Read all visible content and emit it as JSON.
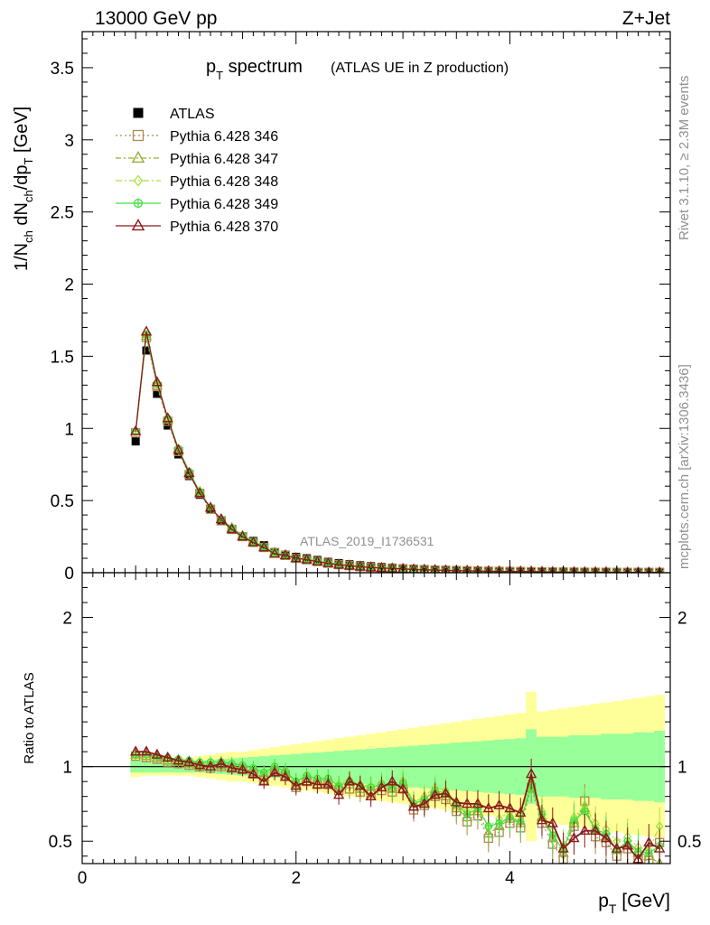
{
  "header": {
    "left": "13000 GeV pp",
    "right": "Z+Jet"
  },
  "side_labels": {
    "top": "Rivet 3.1.10, ≥ 2.3M events",
    "bottom": "mcplots.cern.ch [arXiv:1306.3436]"
  },
  "watermark": "ATLAS_2019_I1736531",
  "colors": {
    "data": "#000000",
    "p346": "#b08850",
    "p347": "#9aab30",
    "p348": "#a8e040",
    "p349": "#40e040",
    "p370": "#8b1a1a",
    "band_outer": "#ffff99",
    "band_inner": "#99ff99"
  },
  "chart_data": [
    {
      "type": "line",
      "title": "p_T spectrum",
      "title_main": "p",
      "title_sub": "T",
      "title_rest": " spectrum",
      "title_note": "(ATLAS UE in Z production)",
      "ylabel": "1/N_ch dN_ch/dp_T [GeV]",
      "ylabel_parts": {
        "a": "1/N",
        "b": "ch",
        "c": " dN",
        "d": "ch",
        "e": "/dp",
        "f": "T",
        "g": " [GeV]"
      },
      "xlim": [
        0,
        5.5
      ],
      "ylim": [
        0,
        3.75
      ],
      "ytick_labels": [
        "0",
        "0.5",
        "1",
        "1.5",
        "2",
        "2.5",
        "3",
        "3.5"
      ],
      "x": [
        0.5,
        0.6,
        0.7,
        0.8,
        0.9,
        1.0,
        1.1,
        1.2,
        1.3,
        1.4,
        1.5,
        1.6,
        1.7,
        1.8,
        1.9,
        2.0,
        2.1,
        2.2,
        2.3,
        2.4,
        2.5,
        2.6,
        2.7,
        2.8,
        2.9,
        3.0,
        3.1,
        3.2,
        3.3,
        3.4,
        3.5,
        3.6,
        3.7,
        3.8,
        3.9,
        4.0,
        4.1,
        4.2,
        4.3,
        4.4,
        4.5,
        4.6,
        4.7,
        4.8,
        4.9,
        5.0,
        5.1,
        5.2,
        5.3,
        5.4
      ],
      "series": [
        {
          "name": "ATLAS",
          "style": "data",
          "values": [
            0.91,
            1.54,
            1.24,
            1.02,
            0.82,
            0.67,
            0.54,
            0.44,
            0.36,
            0.3,
            0.25,
            0.22,
            0.19,
            0.14,
            0.125,
            0.11,
            0.1,
            0.088,
            0.075,
            0.066,
            0.058,
            0.051,
            0.045,
            0.04,
            0.035,
            0.031,
            0.028,
            0.025,
            0.022,
            0.02,
            0.018,
            0.016,
            0.014,
            0.013,
            0.012,
            0.011,
            0.01,
            0.0095,
            0.0088,
            0.0082,
            0.0076,
            0.007,
            0.0065,
            0.006,
            0.0056,
            0.0052,
            0.0049,
            0.0046,
            0.0043,
            0.004
          ]
        },
        {
          "name": "Pythia 6.428 346",
          "style": "p346",
          "values": [
            0.97,
            1.63,
            1.29,
            1.05,
            0.84,
            0.68,
            0.55,
            0.44,
            0.36,
            0.3,
            0.25,
            0.21,
            0.175,
            0.14,
            0.12,
            0.1,
            0.09,
            0.078,
            0.066,
            0.056,
            0.049,
            0.042,
            0.037,
            0.033,
            0.029,
            0.026,
            0.023,
            0.02,
            0.018,
            0.016,
            0.014,
            0.013,
            0.011,
            0.01,
            0.009,
            0.008,
            0.008,
            0.007,
            0.006,
            0.005,
            0.004,
            0.004,
            0.003,
            0.003,
            0.003,
            0.002,
            0.002,
            0.002,
            0.002,
            0.002
          ]
        },
        {
          "name": "Pythia 6.428 347",
          "style": "p347",
          "values": [
            0.98,
            1.64,
            1.3,
            1.06,
            0.85,
            0.69,
            0.56,
            0.45,
            0.37,
            0.31,
            0.255,
            0.213,
            0.178,
            0.14,
            0.12,
            0.1,
            0.092,
            0.079,
            0.067,
            0.057,
            0.05,
            0.043,
            0.038,
            0.034,
            0.03,
            0.027,
            0.023,
            0.021,
            0.019,
            0.016,
            0.015,
            0.013,
            0.011,
            0.01,
            0.01,
            0.009,
            0.008,
            0.008,
            0.006,
            0.005,
            0.004,
            0.004,
            0.003,
            0.003,
            0.003,
            0.002,
            0.002,
            0.002,
            0.002,
            0.002
          ]
        },
        {
          "name": "Pythia 6.428 348",
          "style": "p348",
          "values": [
            0.98,
            1.65,
            1.31,
            1.07,
            0.85,
            0.69,
            0.56,
            0.45,
            0.37,
            0.31,
            0.257,
            0.215,
            0.18,
            0.14,
            0.12,
            0.1,
            0.093,
            0.08,
            0.068,
            0.058,
            0.051,
            0.044,
            0.038,
            0.034,
            0.03,
            0.027,
            0.024,
            0.021,
            0.019,
            0.017,
            0.015,
            0.013,
            0.012,
            0.011,
            0.01,
            0.009,
            0.008,
            0.008,
            0.006,
            0.005,
            0.005,
            0.004,
            0.004,
            0.003,
            0.003,
            0.003,
            0.002,
            0.002,
            0.002,
            0.002
          ]
        },
        {
          "name": "Pythia 6.428 349",
          "style": "p349",
          "values": [
            0.98,
            1.65,
            1.31,
            1.07,
            0.86,
            0.7,
            0.56,
            0.45,
            0.37,
            0.31,
            0.258,
            0.216,
            0.181,
            0.14,
            0.12,
            0.1,
            0.094,
            0.081,
            0.069,
            0.059,
            0.051,
            0.044,
            0.038,
            0.034,
            0.03,
            0.027,
            0.024,
            0.021,
            0.019,
            0.017,
            0.015,
            0.013,
            0.012,
            0.011,
            0.01,
            0.009,
            0.008,
            0.008,
            0.006,
            0.005,
            0.005,
            0.004,
            0.004,
            0.003,
            0.003,
            0.003,
            0.002,
            0.002,
            0.002,
            0.002
          ]
        },
        {
          "name": "Pythia 6.428 370",
          "style": "p370",
          "values": [
            0.98,
            1.67,
            1.32,
            1.07,
            0.85,
            0.69,
            0.55,
            0.45,
            0.37,
            0.3,
            0.25,
            0.21,
            0.175,
            0.13,
            0.12,
            0.1,
            0.09,
            0.077,
            0.065,
            0.055,
            0.048,
            0.042,
            0.036,
            0.032,
            0.029,
            0.026,
            0.022,
            0.02,
            0.018,
            0.016,
            0.014,
            0.013,
            0.011,
            0.01,
            0.009,
            0.008,
            0.008,
            0.008,
            0.006,
            0.005,
            0.004,
            0.004,
            0.003,
            0.003,
            0.003,
            0.002,
            0.002,
            0.002,
            0.002,
            0.002
          ]
        }
      ]
    },
    {
      "type": "line",
      "ylabel": "Ratio to ATLAS",
      "xlabel": "p_T [GeV]",
      "xlabel_parts": {
        "a": "p",
        "b": "T",
        "c": " [GeV]"
      },
      "xlim": [
        0,
        5.5
      ],
      "ylim": [
        0.35,
        2.3
      ],
      "ytick_labels": [
        "0.5",
        "1",
        "2"
      ],
      "ytick_labels_right": [
        "0.5",
        "1",
        "2"
      ],
      "xtick_labels": [
        "0",
        "2",
        "4"
      ],
      "x": [
        0.5,
        0.6,
        0.7,
        0.8,
        0.9,
        1.0,
        1.1,
        1.2,
        1.3,
        1.4,
        1.5,
        1.6,
        1.7,
        1.8,
        1.9,
        2.0,
        2.1,
        2.2,
        2.3,
        2.4,
        2.5,
        2.6,
        2.7,
        2.8,
        2.9,
        3.0,
        3.1,
        3.2,
        3.3,
        3.4,
        3.5,
        3.6,
        3.7,
        3.8,
        3.9,
        4.0,
        4.1,
        4.2,
        4.3,
        4.4,
        4.5,
        4.6,
        4.7,
        4.8,
        4.9,
        5.0,
        5.1,
        5.2,
        5.3,
        5.4
      ],
      "band_inner_halfwidth": [
        0.04,
        0.04,
        0.04,
        0.04,
        0.04,
        0.04,
        0.04,
        0.045,
        0.05,
        0.055,
        0.06,
        0.065,
        0.07,
        0.075,
        0.08,
        0.085,
        0.09,
        0.095,
        0.1,
        0.105,
        0.11,
        0.115,
        0.12,
        0.125,
        0.13,
        0.135,
        0.14,
        0.145,
        0.15,
        0.155,
        0.16,
        0.165,
        0.17,
        0.175,
        0.18,
        0.185,
        0.19,
        0.25,
        0.2,
        0.2,
        0.2,
        0.21,
        0.21,
        0.21,
        0.22,
        0.22,
        0.22,
        0.23,
        0.23,
        0.24
      ],
      "band_outer_halfwidth": [
        0.07,
        0.06,
        0.06,
        0.06,
        0.06,
        0.06,
        0.07,
        0.08,
        0.09,
        0.1,
        0.1,
        0.11,
        0.12,
        0.13,
        0.14,
        0.15,
        0.16,
        0.17,
        0.18,
        0.19,
        0.2,
        0.21,
        0.22,
        0.23,
        0.24,
        0.25,
        0.26,
        0.27,
        0.28,
        0.29,
        0.3,
        0.31,
        0.32,
        0.33,
        0.34,
        0.35,
        0.36,
        0.5,
        0.37,
        0.38,
        0.39,
        0.4,
        0.41,
        0.42,
        0.43,
        0.44,
        0.45,
        0.46,
        0.47,
        0.48
      ],
      "series": [
        {
          "name": "Pythia 6.428 346",
          "style": "p346",
          "values": [
            1.07,
            1.06,
            1.05,
            1.03,
            1.02,
            1.01,
            1.0,
            0.99,
            1.0,
            0.99,
            0.98,
            0.95,
            0.91,
            0.97,
            0.94,
            0.86,
            0.9,
            0.88,
            0.88,
            0.84,
            0.85,
            0.83,
            0.82,
            0.84,
            0.83,
            0.85,
            0.71,
            0.74,
            0.8,
            0.78,
            0.7,
            0.63,
            0.67,
            0.52,
            0.56,
            0.62,
            0.59,
            0.86,
            0.62,
            0.48,
            0.38,
            0.6,
            0.77,
            0.53,
            0.49,
            0.4,
            0.45,
            0.38,
            0.37,
            0.49
          ]
        },
        {
          "name": "Pythia 6.428 347",
          "style": "p347",
          "values": [
            1.08,
            1.07,
            1.06,
            1.04,
            1.03,
            1.02,
            1.0,
            1.0,
            1.01,
            1.0,
            0.99,
            0.96,
            0.93,
            0.98,
            0.95,
            0.88,
            0.92,
            0.9,
            0.89,
            0.86,
            0.88,
            0.85,
            0.84,
            0.86,
            0.85,
            0.88,
            0.73,
            0.76,
            0.82,
            0.8,
            0.72,
            0.66,
            0.7,
            0.55,
            0.6,
            0.65,
            0.62,
            0.87,
            0.66,
            0.52,
            0.42,
            0.62,
            0.72,
            0.58,
            0.53,
            0.44,
            0.48,
            0.42,
            0.4,
            0.35
          ]
        },
        {
          "name": "Pythia 6.428 348",
          "style": "p348",
          "values": [
            1.08,
            1.08,
            1.07,
            1.05,
            1.04,
            1.03,
            1.02,
            1.02,
            1.03,
            1.02,
            1.01,
            0.99,
            0.96,
            1.0,
            0.97,
            0.9,
            0.94,
            0.92,
            0.92,
            0.88,
            0.91,
            0.88,
            0.87,
            0.89,
            0.88,
            0.91,
            0.76,
            0.8,
            0.86,
            0.84,
            0.76,
            0.7,
            0.74,
            0.6,
            0.65,
            0.7,
            0.67,
            0.9,
            0.7,
            0.57,
            0.47,
            0.66,
            0.74,
            0.62,
            0.58,
            0.5,
            0.53,
            0.46,
            0.44,
            0.6
          ]
        },
        {
          "name": "Pythia 6.428 349",
          "style": "p349",
          "values": [
            1.08,
            1.08,
            1.07,
            1.06,
            1.05,
            1.04,
            1.03,
            1.03,
            1.03,
            1.02,
            1.01,
            0.99,
            0.96,
            1.0,
            0.97,
            0.9,
            0.94,
            0.92,
            0.92,
            0.87,
            0.9,
            0.87,
            0.86,
            0.88,
            0.86,
            0.89,
            0.75,
            0.78,
            0.84,
            0.82,
            0.75,
            0.68,
            0.72,
            0.6,
            0.62,
            0.66,
            0.63,
            0.88,
            0.68,
            0.54,
            0.44,
            0.64,
            0.7,
            0.58,
            0.55,
            0.44,
            0.5,
            0.43,
            0.42,
            0.47
          ]
        },
        {
          "name": "Pythia 6.428 370",
          "style": "p370",
          "values": [
            1.1,
            1.1,
            1.08,
            1.06,
            1.04,
            1.03,
            1.01,
            1.0,
            1.02,
            0.99,
            0.98,
            0.95,
            0.9,
            0.96,
            0.93,
            0.87,
            0.9,
            0.88,
            0.88,
            0.81,
            0.9,
            0.87,
            0.8,
            0.86,
            0.9,
            0.85,
            0.73,
            0.75,
            0.81,
            0.82,
            0.76,
            0.75,
            0.75,
            0.72,
            0.74,
            0.72,
            0.69,
            0.95,
            0.64,
            0.62,
            0.45,
            0.52,
            0.57,
            0.57,
            0.52,
            0.45,
            0.47,
            0.38,
            0.49,
            0.45
          ]
        }
      ]
    }
  ]
}
